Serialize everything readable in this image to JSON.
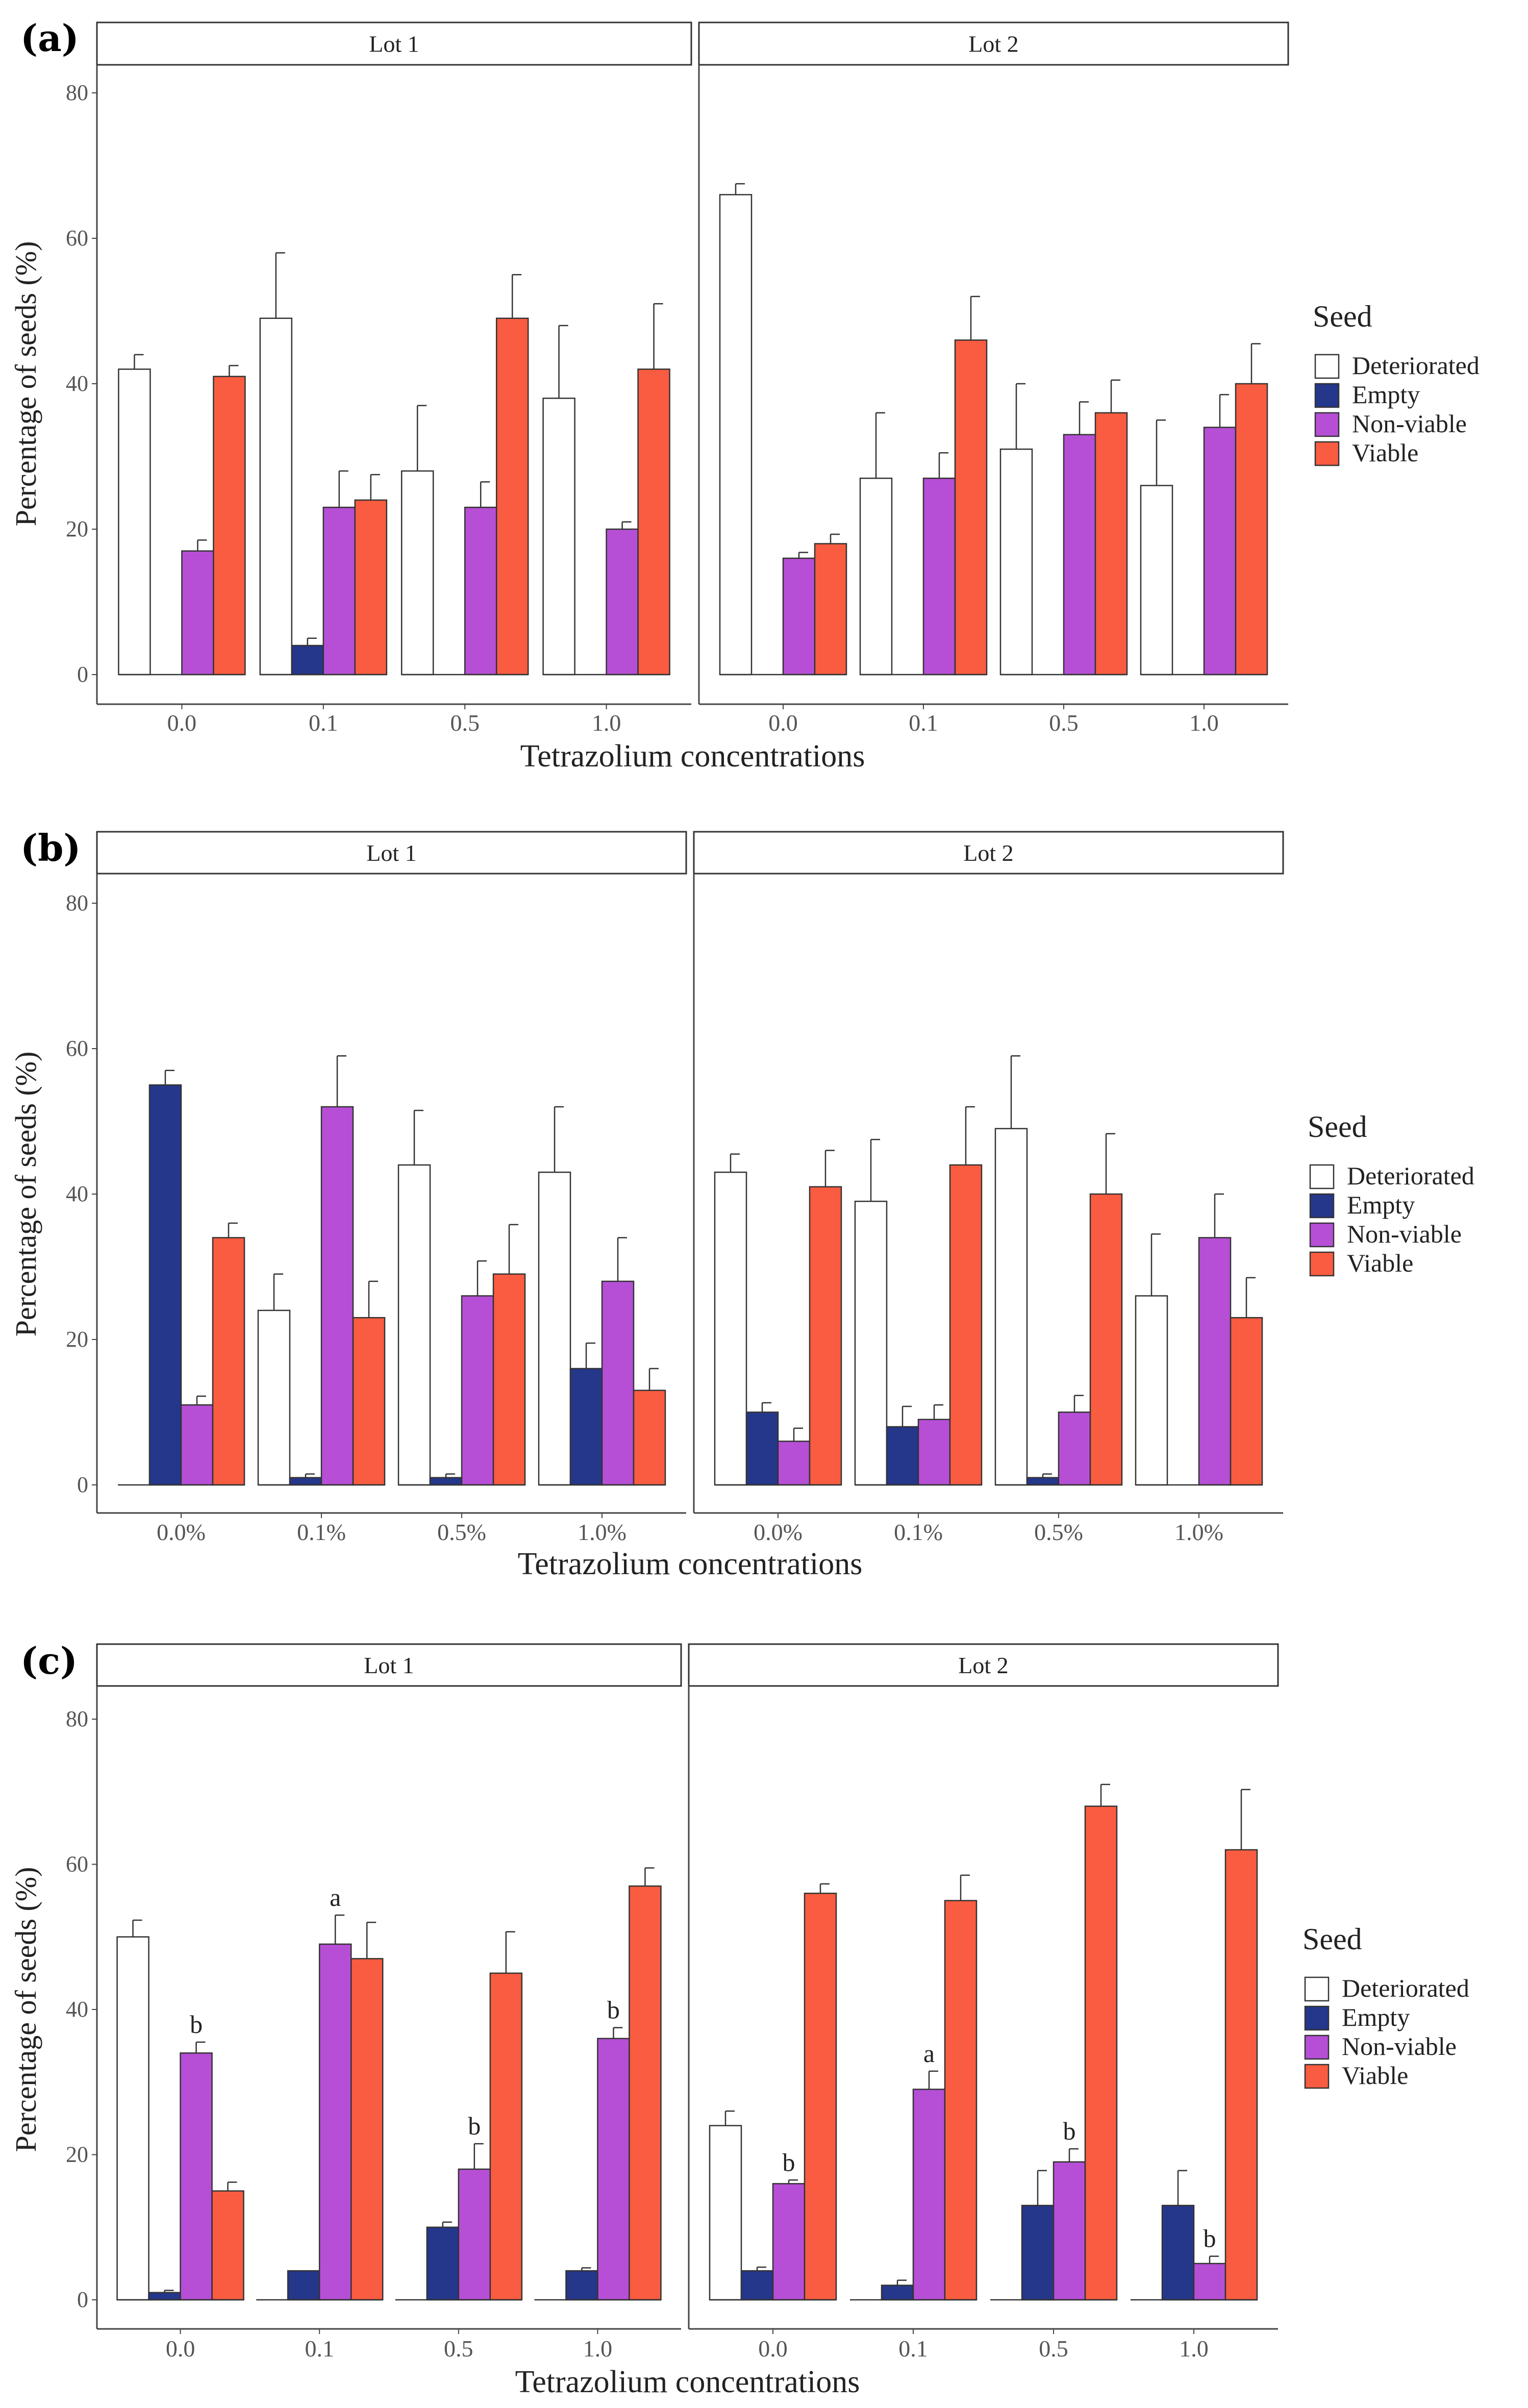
{
  "colors": {
    "Deteriorated": "#ffffff",
    "Empty": "#25378a",
    "Non-viable": "#b64fd6",
    "Viable": "#f95c40"
  },
  "chart_data": [
    {
      "panel_label": "(a)",
      "type": "bar",
      "facets": [
        "Lot 1",
        "Lot 2"
      ],
      "categories": [
        "0.0",
        "0.1",
        "0.5",
        "1.0"
      ],
      "xlabel": "Tetrazolium concentrations",
      "ylabel": "Percentage of seeds (%)",
      "ylim": [
        0,
        80
      ],
      "yticks": [
        "0",
        "20",
        "40",
        "60",
        "80"
      ],
      "legend_title": "Seed",
      "series_names": [
        "Deteriorated",
        "Empty",
        "Non-viable",
        "Viable"
      ],
      "lots": [
        {
          "series": [
            {
              "name": "Deteriorated",
              "values": [
                42,
                49,
                28,
                38
              ],
              "errors": [
                2,
                9,
                9,
                10
              ]
            },
            {
              "name": "Empty",
              "values": [
                0,
                4,
                0,
                0
              ],
              "errors": [
                0,
                1,
                0,
                0
              ]
            },
            {
              "name": "Non-viable",
              "values": [
                17,
                23,
                23,
                20
              ],
              "errors": [
                1.5,
                5,
                3.5,
                1
              ]
            },
            {
              "name": "Viable",
              "values": [
                41,
                24,
                49,
                42
              ],
              "errors": [
                1.5,
                3.5,
                6,
                9
              ]
            }
          ],
          "annotations": []
        },
        {
          "series": [
            {
              "name": "Deteriorated",
              "values": [
                66,
                27,
                31,
                26
              ],
              "errors": [
                1.5,
                9,
                9,
                9
              ]
            },
            {
              "name": "Empty",
              "values": [
                0,
                0,
                0,
                0
              ],
              "errors": [
                0,
                0,
                0,
                0
              ]
            },
            {
              "name": "Non-viable",
              "values": [
                16,
                27,
                33,
                34
              ],
              "errors": [
                0.8,
                3.5,
                4.5,
                4.5
              ]
            },
            {
              "name": "Viable",
              "values": [
                18,
                46,
                36,
                40
              ],
              "errors": [
                1.3,
                6,
                4.5,
                5.5
              ]
            }
          ],
          "annotations": []
        }
      ]
    },
    {
      "panel_label": "(b)",
      "type": "bar",
      "facets": [
        "Lot 1",
        "Lot 2"
      ],
      "categories": [
        "0.0%",
        "0.1%",
        "0.5%",
        "1.0%"
      ],
      "xlabel": "Tetrazolium concentrations",
      "ylabel": "Percentage of seeds (%)",
      "ylim": [
        0,
        80
      ],
      "yticks": [
        "0",
        "20",
        "40",
        "60",
        "80"
      ],
      "legend_title": "Seed",
      "series_names": [
        "Deteriorated",
        "Empty",
        "Non-viable",
        "Viable"
      ],
      "lots": [
        {
          "series": [
            {
              "name": "Deteriorated",
              "values": [
                0,
                24,
                44,
                43
              ],
              "errors": [
                0,
                5,
                7.5,
                9
              ]
            },
            {
              "name": "Empty",
              "values": [
                55,
                1,
                1,
                16
              ],
              "errors": [
                2,
                0.5,
                0.5,
                3.5
              ]
            },
            {
              "name": "Non-viable",
              "values": [
                11,
                52,
                26,
                28
              ],
              "errors": [
                1.2,
                7,
                4.8,
                6
              ]
            },
            {
              "name": "Viable",
              "values": [
                34,
                23,
                29,
                13
              ],
              "errors": [
                2,
                5,
                6.8,
                3
              ]
            }
          ],
          "annotations": []
        },
        {
          "series": [
            {
              "name": "Deteriorated",
              "values": [
                43,
                39,
                49,
                26
              ],
              "errors": [
                2.5,
                8.5,
                10,
                8.5
              ]
            },
            {
              "name": "Empty",
              "values": [
                10,
                8,
                1,
                0
              ],
              "errors": [
                1.3,
                2.8,
                0.5,
                0
              ]
            },
            {
              "name": "Non-viable",
              "values": [
                6,
                9,
                10,
                34
              ],
              "errors": [
                1.8,
                2,
                2.3,
                6
              ]
            },
            {
              "name": "Viable",
              "values": [
                41,
                44,
                40,
                23
              ],
              "errors": [
                5,
                8,
                8.3,
                5.5
              ]
            }
          ],
          "annotations": []
        }
      ]
    },
    {
      "panel_label": "(c)",
      "type": "bar",
      "facets": [
        "Lot 1",
        "Lot 2"
      ],
      "categories": [
        "0.0",
        "0.1",
        "0.5",
        "1.0"
      ],
      "xlabel": "Tetrazolium concentrations",
      "ylabel": "Percentage of seeds (%)",
      "ylim": [
        0,
        80
      ],
      "yticks": [
        "0",
        "20",
        "40",
        "60",
        "80"
      ],
      "legend_title": "Seed",
      "series_names": [
        "Deteriorated",
        "Empty",
        "Non-viable",
        "Viable"
      ],
      "lots": [
        {
          "series": [
            {
              "name": "Deteriorated",
              "values": [
                50,
                0,
                0,
                0
              ],
              "errors": [
                2.3,
                0,
                0,
                0
              ]
            },
            {
              "name": "Empty",
              "values": [
                1,
                4,
                10,
                4
              ],
              "errors": [
                0.3,
                0,
                0.7,
                0.4
              ]
            },
            {
              "name": "Non-viable",
              "values": [
                34,
                49,
                18,
                36
              ],
              "errors": [
                1.5,
                4,
                3.5,
                1.5
              ]
            },
            {
              "name": "Viable",
              "values": [
                15,
                47,
                45,
                57
              ],
              "errors": [
                1.2,
                5,
                5.7,
                2.5
              ]
            }
          ],
          "annotations": [
            {
              "category": "0.0",
              "series": "Non-viable",
              "text": "b"
            },
            {
              "category": "0.1",
              "series": "Non-viable",
              "text": "a"
            },
            {
              "category": "0.5",
              "series": "Non-viable",
              "text": "b"
            },
            {
              "category": "1.0",
              "series": "Non-viable",
              "text": "b"
            }
          ]
        },
        {
          "series": [
            {
              "name": "Deteriorated",
              "values": [
                24,
                0,
                0,
                0
              ],
              "errors": [
                2,
                0,
                0,
                0
              ]
            },
            {
              "name": "Empty",
              "values": [
                4,
                2,
                13,
                13
              ],
              "errors": [
                0.5,
                0.7,
                4.8,
                4.8
              ]
            },
            {
              "name": "Non-viable",
              "values": [
                16,
                29,
                19,
                5
              ],
              "errors": [
                0.5,
                2.5,
                1.8,
                1
              ]
            },
            {
              "name": "Viable",
              "values": [
                56,
                55,
                68,
                62
              ],
              "errors": [
                1.3,
                3.5,
                3,
                8.3
              ]
            }
          ],
          "annotations": [
            {
              "category": "0.0",
              "series": "Non-viable",
              "text": "b"
            },
            {
              "category": "0.1",
              "series": "Non-viable",
              "text": "a"
            },
            {
              "category": "0.5",
              "series": "Non-viable",
              "text": "b"
            },
            {
              "category": "1.0",
              "series": "Non-viable",
              "text": "b"
            }
          ]
        }
      ]
    }
  ]
}
